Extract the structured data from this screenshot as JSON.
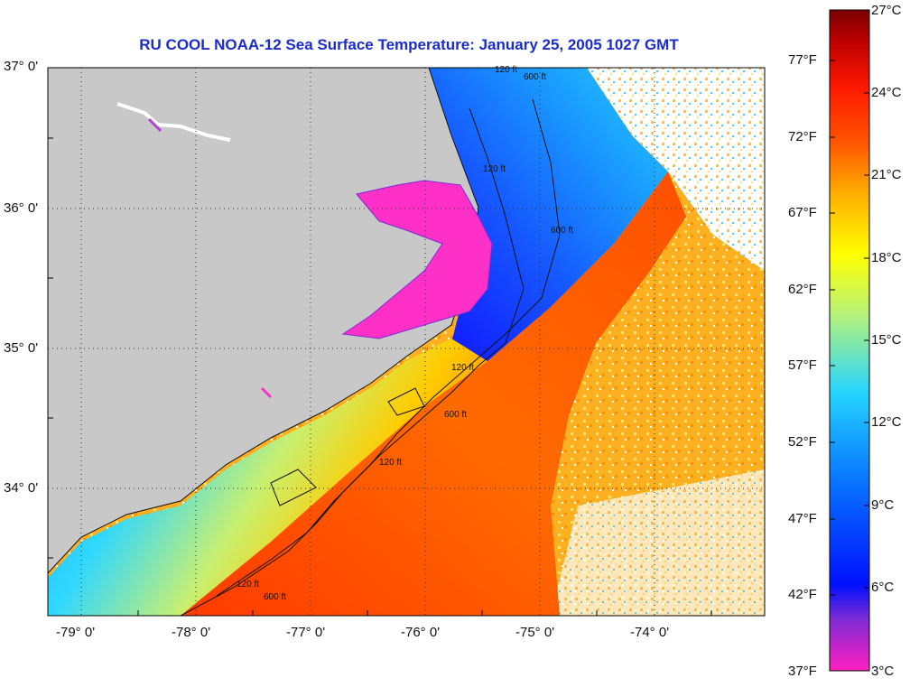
{
  "title": "RU COOL  NOAA-12  Sea Surface Temperature:  January 25, 2005 1027 GMT",
  "lat_labels": [
    "37° 0'",
    "36° 0'",
    "35° 0'",
    "34° 0'"
  ],
  "lon_labels": [
    "-79° 0'",
    "-78° 0'",
    "-77° 0'",
    "-76° 0'",
    "-75° 0'",
    "-74° 0'"
  ],
  "colorbar": {
    "fahrenheit": [
      "77°F",
      "72°F",
      "67°F",
      "62°F",
      "57°F",
      "52°F",
      "47°F",
      "42°F",
      "37°F"
    ],
    "celsius": [
      "27°C",
      "24°C",
      "21°C",
      "18°C",
      "15°C",
      "12°C",
      "9°C",
      "6°C",
      "3°C"
    ],
    "colors": [
      "#ff20c0",
      "#7a2bd6",
      "#0010ff",
      "#0a7dff",
      "#24d4ff",
      "#b8f37a",
      "#ffff00",
      "#ffb000",
      "#ff5500",
      "#ff1a00",
      "#c00000",
      "#7a0000"
    ]
  },
  "contour_labels": [
    "120 ft",
    "600 ft",
    "120 ft",
    "600 ft",
    "120 ft",
    "120 ft",
    "600 ft",
    "120 ft",
    "600 ft"
  ],
  "colors": {
    "land": "#c8c8c8",
    "title": "#1a2ccc",
    "sound": "#ff30c8"
  }
}
